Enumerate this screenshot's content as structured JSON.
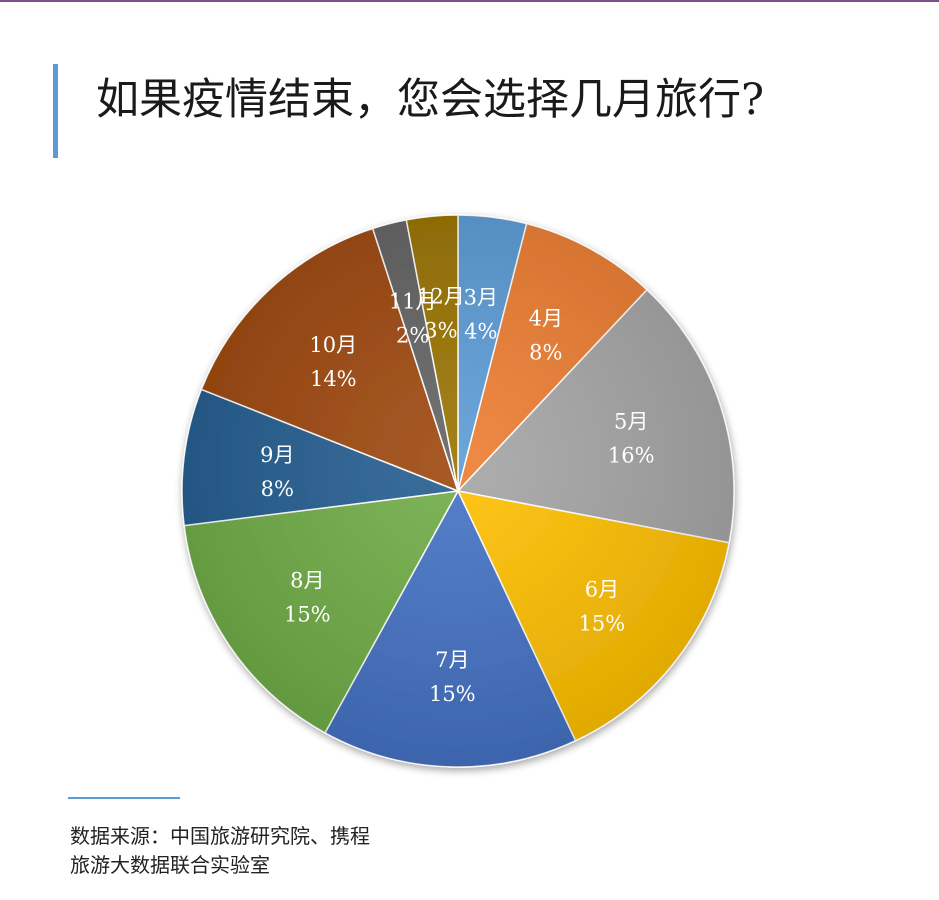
{
  "title": "如果疫情结束，您会选择几月旅行?",
  "source": {
    "line1": "数据来源：中国旅游研究院、携程",
    "line2": "旅游大数据联合实验室"
  },
  "chart_data": {
    "type": "pie",
    "categories": [
      "3月",
      "4月",
      "5月",
      "6月",
      "7月",
      "8月",
      "9月",
      "10月",
      "11月",
      "12月"
    ],
    "values": [
      4,
      8,
      16,
      15,
      15,
      15,
      8,
      14,
      2,
      3
    ],
    "value_labels": [
      "4%",
      "8%",
      "16%",
      "15%",
      "15%",
      "15%",
      "8%",
      "14%",
      "2%",
      "3%"
    ],
    "colors": [
      "#5b9bd5",
      "#ed7d31",
      "#a5a5a5",
      "#ffc000",
      "#4472c4",
      "#70ad47",
      "#255e91",
      "#9e480e",
      "#636363",
      "#997300"
    ],
    "start_angle_deg": 0,
    "direction": "clockwise",
    "legend": "none"
  }
}
